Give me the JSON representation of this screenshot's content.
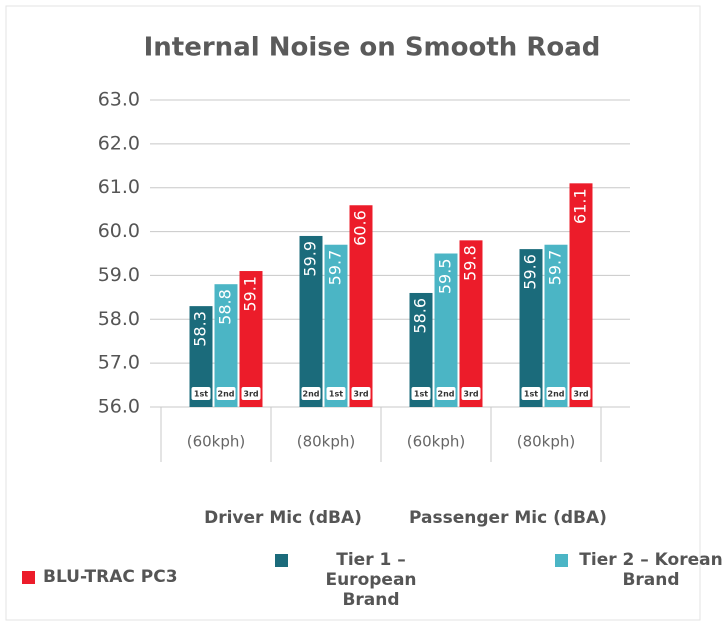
{
  "chart_data": {
    "type": "bar",
    "title": "Internal Noise on Smooth Road",
    "categories": [
      "(60kph)",
      "(80kph)",
      "(60kph)",
      "(80kph)"
    ],
    "groups": [
      "Driver Mic (dBA)",
      "Passenger Mic (dBA)"
    ],
    "series": [
      {
        "name": "Tier 1 – European Brand",
        "color": "#1b6b7b",
        "values": [
          58.3,
          59.9,
          58.6,
          59.6
        ],
        "ranks": [
          "1st",
          "2nd",
          "1st",
          "1st"
        ]
      },
      {
        "name": "Tier 2 – Korean Brand",
        "color": "#4bb5c5",
        "values": [
          58.8,
          59.7,
          59.5,
          59.7
        ],
        "ranks": [
          "2nd",
          "1st",
          "2nd",
          "2nd"
        ]
      },
      {
        "name": "BLU-TRAC PC3",
        "color": "#ec1c2a",
        "values": [
          59.1,
          60.6,
          59.8,
          61.1
        ],
        "ranks": [
          "3rd",
          "3rd",
          "3rd",
          "3rd"
        ]
      }
    ],
    "ylim": [
      56,
      63
    ],
    "yticks": [
      {
        "value": 56,
        "label": "56.0"
      },
      {
        "value": 57,
        "label": "57.0"
      },
      {
        "value": 58,
        "label": "58.0"
      },
      {
        "value": 59,
        "label": "59.0"
      },
      {
        "value": 60,
        "label": "60.0"
      },
      {
        "value": 61,
        "label": "61.0"
      },
      {
        "value": 62,
        "label": "62.0"
      },
      {
        "value": 63,
        "label": "63.0"
      }
    ],
    "grid": true
  }
}
